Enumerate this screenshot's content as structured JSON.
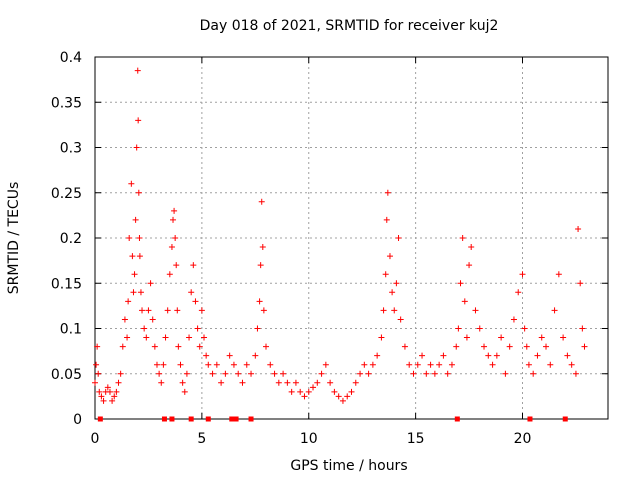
{
  "chart_data": {
    "type": "scatter",
    "title": "Day 018 of 2021, SRMTID for receiver kuj2",
    "xlabel": "GPS time / hours",
    "ylabel": "SRMTID / TECUs",
    "xlim": [
      0,
      24
    ],
    "ylim": [
      0,
      0.4
    ],
    "xticks": [
      0,
      5,
      10,
      15,
      20
    ],
    "xtick_labels": [
      "0",
      "5",
      "10",
      "15",
      "20"
    ],
    "yticks": [
      0,
      0.05,
      0.1,
      0.15,
      0.2,
      0.25,
      0.3,
      0.35,
      0.4
    ],
    "ytick_labels": [
      "0",
      "0.05",
      "0.1",
      "0.15",
      "0.2",
      "0.25",
      "0.3",
      "0.35",
      "0.4"
    ],
    "grid": true,
    "marker": "plus",
    "color": "#ff0000",
    "series": [
      {
        "name": "SRMTID",
        "x": [
          0.0,
          0.05,
          0.1,
          0.15,
          0.2,
          0.3,
          0.4,
          0.5,
          0.6,
          0.7,
          0.8,
          0.9,
          1.0,
          1.1,
          1.2,
          1.3,
          1.4,
          1.5,
          1.55,
          1.6,
          1.7,
          1.75,
          1.8,
          1.85,
          1.9,
          1.95,
          2.0,
          2.02,
          2.05,
          2.08,
          2.1,
          2.15,
          2.2,
          2.3,
          2.4,
          2.5,
          2.6,
          2.7,
          2.8,
          2.9,
          3.0,
          3.1,
          3.2,
          3.3,
          3.4,
          3.5,
          3.6,
          3.65,
          3.7,
          3.75,
          3.8,
          3.85,
          3.9,
          4.0,
          4.1,
          4.2,
          4.3,
          4.4,
          4.5,
          4.6,
          4.7,
          4.8,
          4.9,
          5.0,
          5.1,
          5.2,
          5.3,
          5.5,
          5.7,
          5.9,
          6.1,
          6.3,
          6.5,
          6.7,
          6.9,
          7.1,
          7.3,
          7.5,
          7.6,
          7.7,
          7.75,
          7.8,
          7.85,
          7.9,
          8.0,
          8.2,
          8.4,
          8.6,
          8.8,
          9.0,
          9.2,
          9.4,
          9.6,
          9.8,
          10.0,
          10.2,
          10.4,
          10.6,
          10.8,
          11.0,
          11.2,
          11.4,
          11.6,
          11.8,
          12.0,
          12.2,
          12.4,
          12.6,
          12.8,
          13.0,
          13.2,
          13.4,
          13.5,
          13.6,
          13.65,
          13.7,
          13.8,
          13.9,
          14.0,
          14.1,
          14.2,
          14.3,
          14.5,
          14.7,
          14.9,
          15.1,
          15.3,
          15.5,
          15.7,
          15.9,
          16.1,
          16.3,
          16.5,
          16.7,
          16.9,
          17.0,
          17.1,
          17.2,
          17.3,
          17.4,
          17.5,
          17.6,
          17.8,
          18.0,
          18.2,
          18.4,
          18.6,
          18.8,
          19.0,
          19.2,
          19.4,
          19.6,
          19.8,
          20.0,
          20.1,
          20.2,
          20.3,
          20.5,
          20.7,
          20.9,
          21.1,
          21.3,
          21.5,
          21.7,
          21.9,
          22.1,
          22.3,
          22.5,
          22.6,
          22.7,
          22.8,
          22.9
        ],
        "y": [
          0.04,
          0.06,
          0.08,
          0.05,
          0.03,
          0.025,
          0.02,
          0.03,
          0.035,
          0.03,
          0.02,
          0.025,
          0.03,
          0.04,
          0.05,
          0.08,
          0.11,
          0.09,
          0.13,
          0.2,
          0.26,
          0.18,
          0.14,
          0.16,
          0.22,
          0.3,
          0.385,
          0.33,
          0.25,
          0.2,
          0.18,
          0.14,
          0.12,
          0.1,
          0.09,
          0.12,
          0.15,
          0.11,
          0.08,
          0.06,
          0.05,
          0.04,
          0.06,
          0.09,
          0.12,
          0.16,
          0.19,
          0.22,
          0.23,
          0.2,
          0.17,
          0.12,
          0.08,
          0.06,
          0.04,
          0.03,
          0.05,
          0.09,
          0.14,
          0.17,
          0.13,
          0.1,
          0.08,
          0.12,
          0.09,
          0.07,
          0.06,
          0.05,
          0.06,
          0.04,
          0.05,
          0.07,
          0.06,
          0.05,
          0.04,
          0.06,
          0.05,
          0.07,
          0.1,
          0.13,
          0.17,
          0.24,
          0.19,
          0.12,
          0.08,
          0.06,
          0.05,
          0.04,
          0.05,
          0.04,
          0.03,
          0.04,
          0.03,
          0.025,
          0.03,
          0.035,
          0.04,
          0.05,
          0.06,
          0.04,
          0.03,
          0.025,
          0.02,
          0.025,
          0.03,
          0.04,
          0.05,
          0.06,
          0.05,
          0.06,
          0.07,
          0.09,
          0.12,
          0.16,
          0.22,
          0.25,
          0.18,
          0.14,
          0.12,
          0.15,
          0.2,
          0.11,
          0.08,
          0.06,
          0.05,
          0.06,
          0.07,
          0.05,
          0.06,
          0.05,
          0.06,
          0.07,
          0.05,
          0.06,
          0.08,
          0.1,
          0.15,
          0.2,
          0.13,
          0.09,
          0.17,
          0.19,
          0.12,
          0.1,
          0.08,
          0.07,
          0.06,
          0.07,
          0.09,
          0.05,
          0.08,
          0.11,
          0.14,
          0.16,
          0.1,
          0.08,
          0.06,
          0.05,
          0.07,
          0.09,
          0.08,
          0.06,
          0.12,
          0.16,
          0.09,
          0.07,
          0.06,
          0.05,
          0.21,
          0.15,
          0.1,
          0.08
        ]
      }
    ],
    "data_gaps_x": [
      0.25,
      3.25,
      3.6,
      4.5,
      5.3,
      6.4,
      6.6,
      7.3,
      16.95,
      20.35,
      22.0
    ]
  }
}
